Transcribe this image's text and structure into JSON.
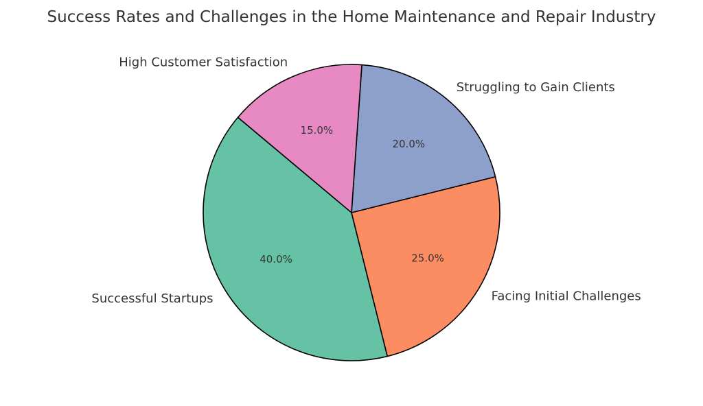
{
  "chart_data": {
    "type": "pie",
    "title": "Success Rates and Challenges in the Home Maintenance and Repair Industry",
    "slices": [
      {
        "label": "Successful Startups",
        "value": 40,
        "percent_label": "40.0%",
        "color": "#66c2a5"
      },
      {
        "label": "Facing Initial Challenges",
        "value": 25,
        "percent_label": "25.0%",
        "color": "#fc8d62"
      },
      {
        "label": "Struggling to Gain Clients",
        "value": 20,
        "percent_label": "20.0%",
        "color": "#8da0cb"
      },
      {
        "label": "High Customer Satisfaction",
        "value": 15,
        "percent_label": "15.0%",
        "color": "#e78ac3"
      }
    ],
    "start_angle_deg": 140,
    "direction": "counterclockwise",
    "legend": "none"
  }
}
